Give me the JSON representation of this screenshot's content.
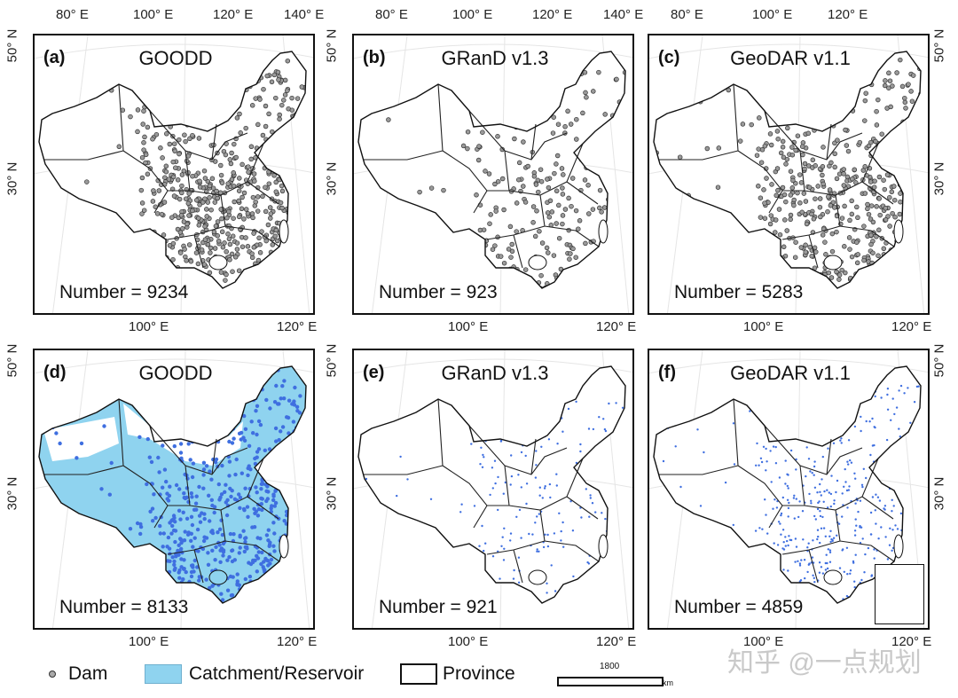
{
  "panels": [
    {
      "label": "(a)",
      "title": "GOODD",
      "number_text": "Number = 9234",
      "kind": "dams",
      "density": 1.0
    },
    {
      "label": "(b)",
      "title": "GRanD v1.3",
      "number_text": "Number = 923",
      "kind": "dams",
      "density": 0.35
    },
    {
      "label": "(c)",
      "title": "GeoDAR v1.1",
      "number_text": "Number = 5283",
      "kind": "dams",
      "density": 0.8
    },
    {
      "label": "(d)",
      "title": "GOODD",
      "number_text": "Number = 8133",
      "kind": "catchment",
      "density": 1.0
    },
    {
      "label": "(e)",
      "title": "GRanD v1.3",
      "number_text": "Number = 921",
      "kind": "reservoir",
      "density": 0.3
    },
    {
      "label": "(f)",
      "title": "GeoDAR v1.1",
      "number_text": "Number = 4859",
      "kind": "reservoir",
      "density": 0.7
    }
  ],
  "ticks": {
    "top_row1": [
      "80° E",
      "100° E",
      "120° E",
      "140° E"
    ],
    "top_row1_c": [
      "80° E",
      "100° E",
      "120° E"
    ],
    "bottom": [
      "100° E",
      "120° E"
    ],
    "lat": [
      "50° N",
      "30° N"
    ]
  },
  "legend": {
    "dam": "Dam",
    "catchment": "Catchment/Reservoir",
    "province": "Province",
    "scale_value": "1800",
    "scale_unit": "km"
  },
  "watermark": "知乎 @一点规划",
  "colors": {
    "catchment": "#8fd3ef",
    "reservoir": "#3f6fe0",
    "dam_fill": "#9a9a9a"
  }
}
